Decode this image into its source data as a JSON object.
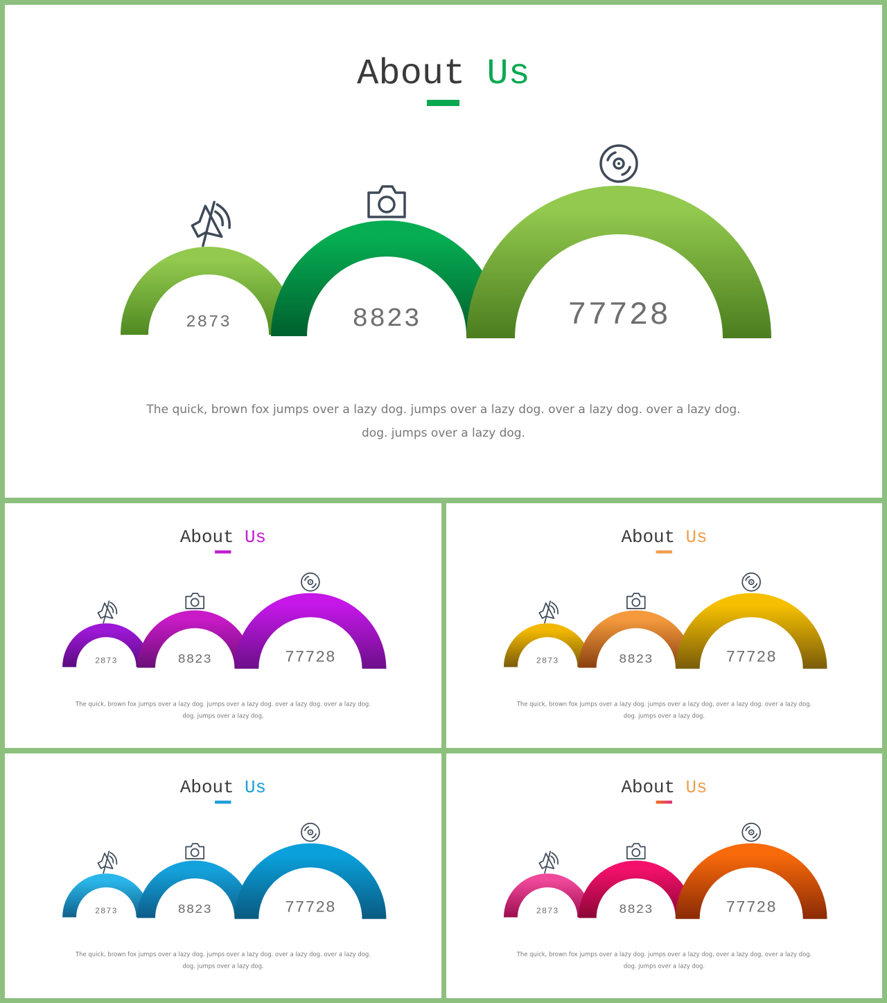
{
  "title_word1": "About",
  "title_word2": "Us",
  "values": [
    "2873",
    "8823",
    "77728"
  ],
  "body_line1": "The quick, brown fox jumps over a lazy dog. jumps over a lazy dog. over a lazy dog. over a lazy dog.",
  "body_line2": "dog. jumps over a lazy dog.",
  "icons": [
    "speaker-icon",
    "camera-icon",
    "disc-icon"
  ],
  "themes": [
    {
      "name": "green",
      "accent": "#0aa851",
      "bar": [
        "#0aa851",
        "#0aa851"
      ],
      "arcs": [
        [
          "#92c94e",
          "#4f8a22"
        ],
        [
          "#06ad52",
          "#005f2e"
        ],
        [
          "#92c94e",
          "#4b7d1f"
        ]
      ]
    },
    {
      "name": "purple",
      "accent": "#c11ed0",
      "bar": [
        "#c11ed0",
        "#c11ed0"
      ],
      "arcs": [
        [
          "#9c18d6",
          "#5b0b80"
        ],
        [
          "#c81ac6",
          "#6a0f78"
        ],
        [
          "#c417e8",
          "#6c0f8a"
        ]
      ]
    },
    {
      "name": "orange",
      "accent": "#f0a050",
      "bar": [
        "#f0a050",
        "#f0a050"
      ],
      "arcs": [
        [
          "#f2b800",
          "#7a5c0a"
        ],
        [
          "#f49a3d",
          "#8a4010"
        ],
        [
          "#f6c000",
          "#7a5c0a"
        ]
      ]
    },
    {
      "name": "blue",
      "accent": "#1e9fd8",
      "bar": [
        "#1e9fd8",
        "#1e9fd8"
      ],
      "arcs": [
        [
          "#2ab6ea",
          "#10628c"
        ],
        [
          "#14a2dc",
          "#0d5c88"
        ],
        [
          "#0aa0dc",
          "#0a5a80"
        ]
      ]
    },
    {
      "name": "sunset",
      "accent": "#f0a050",
      "bar": [
        "#f07020",
        "#e03080"
      ],
      "arcs": [
        [
          "#f0489a",
          "#9c0e4e"
        ],
        [
          "#f2106a",
          "#8c0636"
        ],
        [
          "#f86a0a",
          "#8a2a06"
        ]
      ]
    }
  ]
}
